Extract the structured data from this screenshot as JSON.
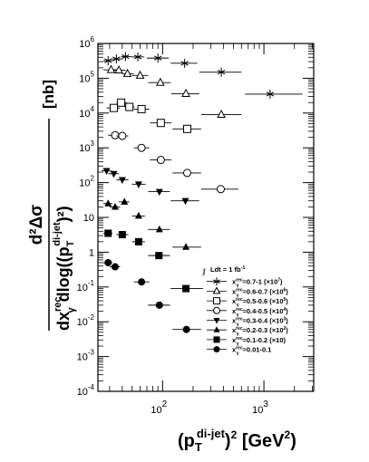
{
  "chart_data": {
    "type": "scatter",
    "x_scale": "log",
    "y_scale": "log",
    "xlim": [
      23,
      3100
    ],
    "ylim": [
      0.0001,
      1000000
    ],
    "xlabel": "(p_T^{di-jet})^2 [GeV^2]",
    "xlabel_parts": {
      "main": "(p",
      "sub": "T",
      "sup": "di-jet",
      "close": ")",
      "power": "2",
      "unit": " [GeV",
      "unit_power": "2",
      "unit_close": "]"
    },
    "ylabel_parts": {
      "numerator": "d²Δσ",
      "denominator_prefix": "dx",
      "denominator_x_sup": "rec",
      "denominator_x_sub": "γ",
      "denominator_mid": "dlog((p",
      "denominator_pt_sub": "T",
      "denominator_pt_sup": "di-jet",
      "denominator_end": ")²)",
      "unit": "[nb]"
    },
    "x_tick_labels": [
      {
        "value": 100,
        "base": "10",
        "exp": "2"
      },
      {
        "value": 1000,
        "base": "10",
        "exp": "3"
      }
    ],
    "y_tick_labels": [
      {
        "value": 1000000,
        "base": "10",
        "exp": "6"
      },
      {
        "value": 100000,
        "base": "10",
        "exp": "5"
      },
      {
        "value": 10000,
        "base": "10",
        "exp": "4"
      },
      {
        "value": 1000,
        "base": "10",
        "exp": "3"
      },
      {
        "value": 100,
        "base": "10",
        "exp": "2"
      },
      {
        "value": 10,
        "base": "10",
        "exp": ""
      },
      {
        "value": 1,
        "base": "1",
        "exp": ""
      },
      {
        "value": 0.1,
        "base": "10",
        "exp": "-1"
      },
      {
        "value": 0.01,
        "base": "10",
        "exp": "-2"
      },
      {
        "value": 0.001,
        "base": "10",
        "exp": "-3"
      },
      {
        "value": 0.0001,
        "base": "10",
        "exp": "-4"
      }
    ],
    "legend_header": {
      "text": "Ldt = 1 fb",
      "sup": "-1"
    },
    "legend_placement": "bottom-right",
    "series": [
      {
        "name": "x_γ^rec=0.7-1 (×10^7)",
        "label_main": "x",
        "label_rest": "=0.7-1 (×10",
        "label_power": "7",
        "marker": "star",
        "points": [
          [
            29,
            320000,
            26,
            33
          ],
          [
            35,
            360000,
            31,
            40
          ],
          [
            43,
            420000,
            39,
            49
          ],
          [
            57,
            410000,
            49,
            66
          ],
          [
            90,
            380000,
            70,
            115
          ],
          [
            165,
            270000,
            120,
            220
          ],
          [
            380,
            150000,
            230,
            600
          ],
          [
            1150,
            35000,
            650,
            2400
          ]
        ]
      },
      {
        "name": "x_γ^rec=0.6-0.7 (×10^6)",
        "label_main": "x",
        "label_rest": "=0.6-0.7 (×10",
        "label_power": "6",
        "marker": "open-triangle",
        "points": [
          [
            31,
            175000,
            26,
            36
          ],
          [
            37,
            170000,
            33,
            43
          ],
          [
            45,
            135000,
            40,
            52
          ],
          [
            60,
            120000,
            50,
            72
          ],
          [
            95,
            75000,
            72,
            120
          ],
          [
            170,
            36000,
            122,
            230
          ],
          [
            380,
            9000,
            240,
            600
          ]
        ]
      },
      {
        "name": "x_γ^rec=0.5-0.6 (×10^5)",
        "label_main": "x",
        "label_rest": "=0.5-0.6 (×10",
        "label_power": "5",
        "marker": "open-square",
        "points": [
          [
            33,
            14000,
            28,
            38
          ],
          [
            39,
            20000,
            35,
            44
          ],
          [
            47,
            15000,
            42,
            53
          ],
          [
            62,
            13000,
            52,
            74
          ],
          [
            96,
            5200,
            75,
            122
          ],
          [
            175,
            3500,
            125,
            240
          ]
        ]
      },
      {
        "name": "x_γ^rec=0.4-0.5 (×10^4)",
        "label_main": "x",
        "label_rest": "=0.4-0.5 (×10",
        "label_power": "4",
        "marker": "open-circle",
        "points": [
          [
            34,
            2300,
            29,
            40
          ],
          [
            40,
            2200,
            35,
            46
          ],
          [
            62,
            1000,
            52,
            74
          ],
          [
            96,
            450,
            75,
            122
          ],
          [
            175,
            190,
            125,
            240
          ],
          [
            375,
            65,
            240,
            560
          ]
        ]
      },
      {
        "name": "x_γ^rec=0.3-0.4 (×10^3)",
        "label_main": "x",
        "label_rest": "=0.3-0.4 (×10",
        "label_power": "3",
        "marker": "filled-triangle-down",
        "points": [
          [
            28,
            220,
            25,
            31
          ],
          [
            33,
            180,
            29,
            37
          ],
          [
            40,
            120,
            35,
            46
          ],
          [
            58,
            90,
            50,
            68
          ],
          [
            93,
            55,
            72,
            118
          ],
          [
            168,
            30,
            120,
            230
          ]
        ]
      },
      {
        "name": "x_γ^rec=0.2-0.3 (×10^2)",
        "label_main": "x",
        "label_rest": "=0.2-0.3 (×10",
        "label_power": "2",
        "marker": "filled-triangle-up",
        "points": [
          [
            29,
            25,
            26,
            32
          ],
          [
            34,
            20,
            30,
            38
          ],
          [
            42,
            28,
            37,
            47
          ],
          [
            58,
            11,
            50,
            67
          ],
          [
            93,
            4.5,
            72,
            118
          ],
          [
            170,
            1.4,
            125,
            240
          ]
        ]
      },
      {
        "name": "x_γ^rec=0.1-0.2 (×10)",
        "label_main": "x",
        "label_rest": "=0.1-0.2 (×10)",
        "label_power": "",
        "marker": "filled-square",
        "points": [
          [
            29,
            3.5,
            26,
            32
          ],
          [
            40,
            3.2,
            35,
            46
          ],
          [
            58,
            2.0,
            50,
            67
          ],
          [
            92,
            0.8,
            72,
            118
          ],
          [
            170,
            0.09,
            120,
            250
          ]
        ]
      },
      {
        "name": "x_γ^rec=0.01-0.1",
        "label_main": "x",
        "label_rest": "=0.01-0.1",
        "label_power": "",
        "marker": "filled-circle",
        "points": [
          [
            29,
            0.5,
            26,
            32
          ],
          [
            34,
            0.38,
            30,
            38
          ],
          [
            62,
            0.14,
            52,
            74
          ],
          [
            93,
            0.03,
            72,
            118
          ],
          [
            172,
            0.006,
            125,
            240
          ]
        ]
      }
    ]
  }
}
